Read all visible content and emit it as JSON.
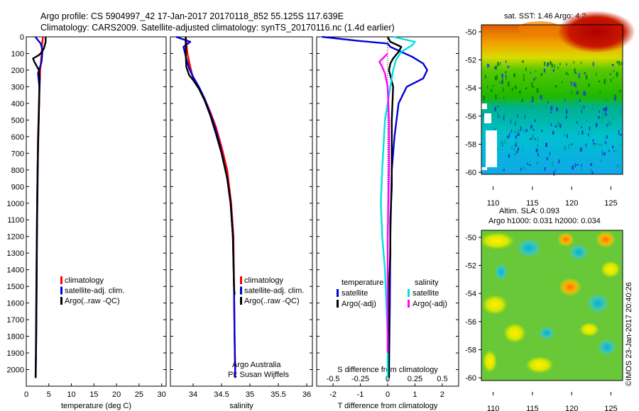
{
  "header": {
    "line1": "Argo profile: CS 5904997_42 17-Jan-2017 20170118_852 55.125S 117.639E",
    "line2": "Climatology: CARS2009. Satellite-adjusted climatology: synTS_20170116.nc (1.4d earlier)"
  },
  "colors": {
    "climatology": "#ff0000",
    "satellite": "#0000dd",
    "argo": "#000000",
    "salinity_satellite": "#00e0e0",
    "salinity_argo": "#ff00ff"
  },
  "chart_data": [
    {
      "name": "temperature",
      "type": "line",
      "xlabel": "temperature (deg C)",
      "xlim": [
        0,
        31
      ],
      "ylim": [
        2100,
        0
      ],
      "xticks": [
        "0",
        "5",
        "10",
        "15",
        "20",
        "25",
        "30"
      ],
      "xtick_values": [
        0,
        5,
        10,
        15,
        20,
        25,
        30
      ],
      "yticks": [
        "0",
        "100",
        "200",
        "300",
        "400",
        "500",
        "600",
        "700",
        "800",
        "900",
        "1000",
        "1100",
        "1200",
        "1300",
        "1400",
        "1500",
        "1600",
        "1700",
        "1800",
        "1900",
        "2000"
      ],
      "ytick_values": [
        0,
        100,
        200,
        300,
        400,
        500,
        600,
        700,
        800,
        900,
        1000,
        1100,
        1200,
        1300,
        1400,
        1500,
        1600,
        1700,
        1800,
        1900,
        2000
      ],
      "legend": [
        "climatology",
        "satellite-adj. clim.",
        "Argo(..raw -QC)"
      ],
      "series": [
        {
          "name": "climatology",
          "color": "#ff0000",
          "x": [
            3.7,
            3.5,
            3.4,
            3.1,
            2.9,
            2.8,
            2.7,
            2.6,
            2.55,
            2.5,
            2.45,
            2.4,
            2.35,
            2.3,
            2.25,
            2.2,
            2.15,
            2.1,
            2.05
          ],
          "y": [
            0,
            50,
            100,
            200,
            300,
            400,
            500,
            600,
            700,
            800,
            900,
            1000,
            1200,
            1400,
            1600,
            1800,
            1900,
            2000,
            2050
          ]
        },
        {
          "name": "satellite-adj. clim.",
          "color": "#0000dd",
          "x": [
            2.0,
            3.2,
            3.6,
            3.4,
            2.6,
            2.9,
            2.85,
            2.75,
            2.65,
            2.58,
            2.5,
            2.45,
            2.4,
            2.33,
            2.26,
            2.2,
            2.15,
            2.1,
            2.07
          ],
          "y": [
            0,
            40,
            80,
            150,
            220,
            300,
            400,
            500,
            600,
            700,
            800,
            900,
            1000,
            1200,
            1400,
            1600,
            1800,
            2000,
            2050
          ]
        },
        {
          "name": "Argo(..raw -QC)",
          "color": "#000000",
          "x": [
            4.3,
            4.3,
            4.1,
            3.9,
            3.5,
            2.8,
            1.5,
            1.8,
            2.8,
            3.0,
            2.95,
            2.85,
            2.75,
            2.6,
            2.5,
            2.4,
            2.35,
            2.3,
            2.2,
            2.1
          ],
          "y": [
            0,
            30,
            50,
            70,
            90,
            110,
            130,
            150,
            200,
            250,
            300,
            400,
            500,
            700,
            900,
            1100,
            1300,
            1500,
            1800,
            2050
          ]
        }
      ]
    },
    {
      "name": "salinity",
      "type": "line",
      "xlabel": "salinity",
      "xlim": [
        33.6,
        36.1
      ],
      "ylim": [
        2100,
        0
      ],
      "xticks": [
        "34",
        "34.5",
        "35",
        "35.5",
        "36"
      ],
      "xtick_values": [
        34,
        34.5,
        35,
        35.5,
        36
      ],
      "legend": [
        "climatology",
        "satellite-adj. clim.",
        "Argo(..raw -QC)"
      ],
      "annotation": [
        "Argo Australia",
        "PI: Susan Wijffels"
      ],
      "series": [
        {
          "name": "climatology",
          "color": "#ff0000",
          "x": [
            33.87,
            33.9,
            33.95,
            34.0,
            34.1,
            34.2,
            34.3,
            34.4,
            34.5,
            34.6,
            34.67,
            34.71,
            34.72,
            34.73,
            34.74,
            34.74
          ],
          "y": [
            0,
            100,
            180,
            250,
            300,
            370,
            450,
            540,
            660,
            800,
            1000,
            1200,
            1500,
            1800,
            2000,
            2050
          ]
        },
        {
          "name": "satellite-adj. clim.",
          "color": "#0000dd",
          "x": [
            33.7,
            33.95,
            33.83,
            33.88,
            33.93,
            34.0,
            34.1,
            34.2,
            34.3,
            34.4,
            34.5,
            34.6,
            34.66,
            34.7,
            34.72,
            34.73,
            34.74,
            34.74
          ],
          "y": [
            0,
            30,
            60,
            130,
            190,
            240,
            300,
            370,
            460,
            560,
            690,
            850,
            1000,
            1200,
            1500,
            1800,
            2000,
            2050
          ]
        },
        {
          "name": "Argo(..raw -QC)",
          "color": "#000000",
          "x": [
            33.87,
            33.87,
            33.88,
            33.93,
            34.0,
            34.1,
            34.2,
            34.3,
            34.4,
            34.5,
            34.6,
            34.66,
            34.7,
            34.72,
            34.73
          ],
          "y": [
            0,
            100,
            180,
            230,
            260,
            310,
            380,
            470,
            580,
            700,
            850,
            1000,
            1200,
            1500,
            1550
          ]
        }
      ]
    },
    {
      "name": "difference",
      "type": "line",
      "xlabel": "T difference from climatology",
      "xlabel2": "S difference from climatology",
      "xlim": [
        -2.6,
        2.6
      ],
      "ylim": [
        2100,
        0
      ],
      "xticks": [
        "-2",
        "-1",
        "0",
        "1",
        "2"
      ],
      "xtick_values": [
        -2,
        -1,
        0,
        1,
        2
      ],
      "sticks": [
        "-0.5",
        "-0.25",
        "0",
        "0.25",
        "0.5"
      ],
      "stick_values": [
        -2,
        -1,
        0,
        1,
        2
      ],
      "legend_headers": [
        "temperature",
        "salinity"
      ],
      "legend": [
        "satellite",
        "Argo(-adj)",
        "satellite",
        "Argo(-adj)"
      ],
      "series": [
        {
          "name": "T satellite",
          "color": "#0000dd",
          "x": [
            -2.4,
            -1.0,
            0.0,
            0.1,
            0.9,
            1.3,
            1.45,
            1.3,
            0.7,
            0.4,
            0.25,
            0.15,
            0.1,
            0.08,
            0.05,
            0.05
          ],
          "y": [
            0,
            25,
            40,
            60,
            120,
            160,
            200,
            250,
            300,
            400,
            600,
            800,
            1200,
            1600,
            2000,
            2050
          ]
        },
        {
          "name": "T Argo(-adj)",
          "color": "#000000",
          "x": [
            0.0,
            0.1,
            0.5,
            0.4,
            0.2,
            0.1,
            0.05,
            0.2,
            0.15,
            0.15,
            0.15,
            0.1,
            0.1,
            0.05,
            0.05,
            0.05
          ],
          "y": [
            0,
            30,
            60,
            90,
            130,
            160,
            200,
            300,
            500,
            700,
            900,
            1100,
            1300,
            1500,
            1800,
            2050
          ]
        },
        {
          "name": "S satellite",
          "color": "#00e0e0",
          "x": [
            0.2,
            1.0,
            0.9,
            0.5,
            0.3,
            0.2,
            0.1,
            -0.1,
            -0.2,
            -0.25,
            -0.2,
            -0.1,
            0.0,
            0.0
          ],
          "y": [
            0,
            30,
            50,
            90,
            140,
            200,
            300,
            500,
            800,
            1000,
            1200,
            1400,
            1800,
            2050
          ]
        },
        {
          "name": "S Argo(-adj)",
          "color": "#ff00ff",
          "x": [
            0.0,
            -0.3,
            -0.2,
            -0.1,
            0.0,
            0.05,
            0.05,
            0.0,
            0.0,
            0.0
          ],
          "y": [
            100,
            150,
            180,
            220,
            300,
            500,
            800,
            1200,
            1600,
            1900
          ]
        }
      ]
    }
  ],
  "map_sst": {
    "title": "sat. SST: 1.46 Argo: 4.2",
    "xticks": [
      "110",
      "115",
      "120",
      "125"
    ],
    "yticks": [
      "-50",
      "-52",
      "-54",
      "-56",
      "-58",
      "-60"
    ],
    "xlim": [
      108.5,
      126.5
    ],
    "ylim": [
      -61,
      -49.5
    ]
  },
  "map_sla": {
    "title1": "Altim. SLA: 0.093",
    "title2": "Argo h1000: 0.031 h2000: 0.034",
    "xticks": [
      "110",
      "115",
      "120",
      "125"
    ],
    "yticks": [
      "-50",
      "-52",
      "-54",
      "-56",
      "-58",
      "-60"
    ],
    "xlim": [
      108.5,
      126.5
    ],
    "ylim": [
      -61,
      -49.5
    ]
  },
  "credit": "©IMOS 23-Jan-2017 20:40:26"
}
